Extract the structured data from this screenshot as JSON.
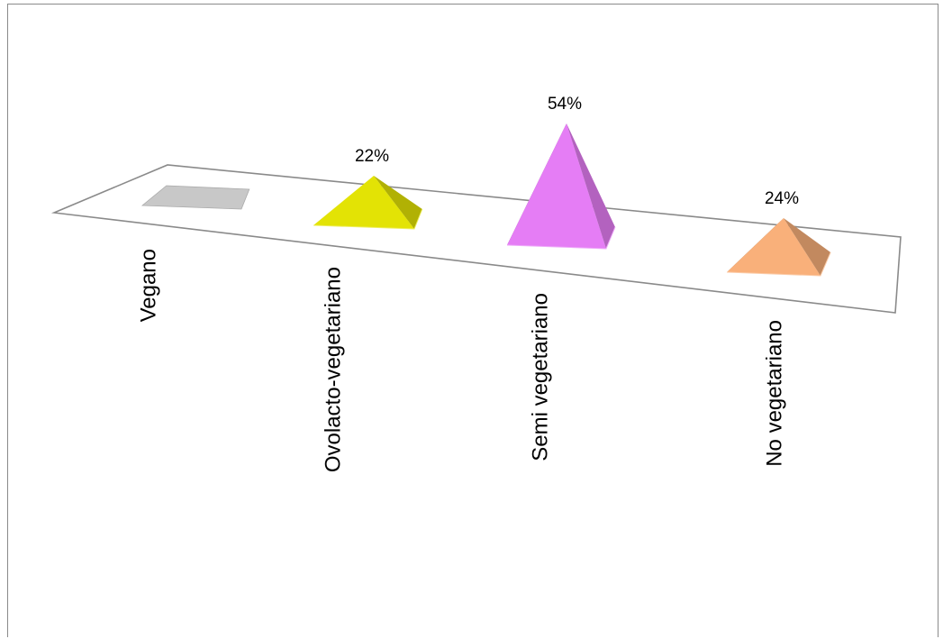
{
  "chart_data": {
    "type": "bar",
    "style": "3d-pyramid",
    "categories": [
      "Vegano",
      "Ovolacto-vegetariano",
      "Semi vegetariano",
      "No vegetariano"
    ],
    "values": [
      0,
      22,
      54,
      24
    ],
    "data_labels": [
      "",
      "22%",
      "54%",
      "24%"
    ],
    "colors": [
      "#c8c8c8",
      "#e3e305",
      "#e57df5",
      "#f9b07a"
    ],
    "title": "",
    "xlabel": "",
    "ylabel": "",
    "ylim": [
      0,
      60
    ],
    "grid": false,
    "legend": "none"
  }
}
